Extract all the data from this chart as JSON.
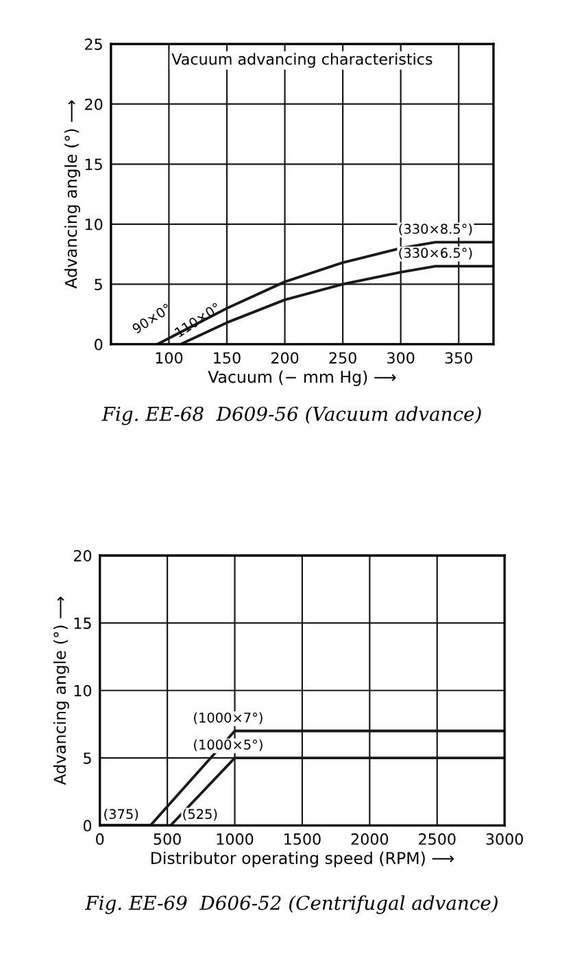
{
  "chart_data": [
    {
      "type": "line",
      "title": "Vacuum advancing characteristics",
      "xlabel": "Vacuum (− mm Hg) ⟶",
      "ylabel": "Advancing angle (°) ⟶",
      "xlim": [
        50,
        380
      ],
      "ylim": [
        0,
        25
      ],
      "xticks": [
        100,
        150,
        200,
        250,
        300,
        350
      ],
      "yticks": [
        0,
        5,
        10,
        15,
        20,
        25
      ],
      "grid": true,
      "series": [
        {
          "color": "#1a1a1a",
          "x": [
            90,
            150,
            200,
            250,
            300,
            330,
            380
          ],
          "values": [
            0,
            3,
            5.2,
            6.8,
            8,
            8.5,
            8.5
          ]
        },
        {
          "color": "#1a1a1a",
          "x": [
            110,
            150,
            200,
            250,
            300,
            330,
            380
          ],
          "values": [
            0,
            1.8,
            3.7,
            5,
            6,
            6.5,
            6.5
          ]
        }
      ],
      "annotations": [
        {
          "text": "90×0°",
          "x": 90,
          "y": 0
        },
        {
          "text": "110×0°",
          "x": 110,
          "y": 0
        },
        {
          "text": "(330×8.5°)",
          "x": 330,
          "y": 8.5
        },
        {
          "text": "(330×6.5°)",
          "x": 330,
          "y": 6.5
        },
        "Fig. EE-68  D609-56 (Vacuum advance)"
      ]
    },
    {
      "type": "line",
      "xlabel": "Distributor operating speed (RPM) ⟶",
      "ylabel": "Advancing angle (°) ⟶",
      "xlim": [
        0,
        3000
      ],
      "ylim": [
        0,
        20
      ],
      "xticks": [
        0,
        500,
        1000,
        1500,
        2000,
        2500,
        3000
      ],
      "yticks": [
        0,
        5,
        10,
        15,
        20
      ],
      "grid": true,
      "series": [
        {
          "color": "#1a1a1a",
          "x": [
            0,
            375,
            1000,
            3000
          ],
          "values": [
            0,
            0,
            7,
            7
          ]
        },
        {
          "color": "#1a1a1a",
          "x": [
            0,
            525,
            1000,
            3000
          ],
          "values": [
            0,
            0,
            5,
            5
          ]
        }
      ],
      "annotations": [
        {
          "text": "(375)",
          "x": 375,
          "y": 0
        },
        {
          "text": "(525)",
          "x": 525,
          "y": 0
        },
        {
          "text": "(1000×7°)",
          "x": 1000,
          "y": 7
        },
        {
          "text": "(1000×5°)",
          "x": 1000,
          "y": 5
        },
        "Fig. EE-69  D606-52 (Centrifugal advance)"
      ]
    }
  ]
}
